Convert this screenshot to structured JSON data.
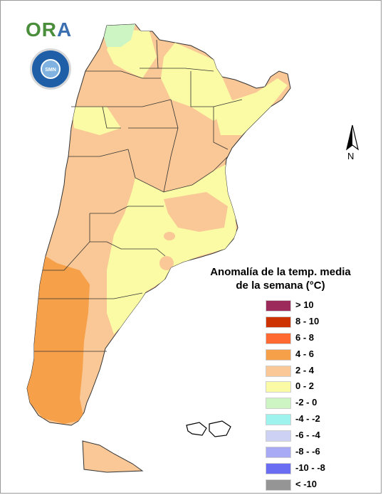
{
  "branding": {
    "logo_main": "OR",
    "logo_accent": "A",
    "seal_name": "smn-seal-icon",
    "seal_text": "SMN"
  },
  "compass": {
    "label": "N",
    "icon": "north-arrow-icon"
  },
  "legend": {
    "title_line1": "Anomalía de la temp. media",
    "title_line2": "de la semana (°C)",
    "items": [
      {
        "label": "> 10",
        "color": "#9c2b5c"
      },
      {
        "label": "8 - 10",
        "color": "#cc3300"
      },
      {
        "label": "6 - 8",
        "color": "#ff6a33"
      },
      {
        "label": "4 - 6",
        "color": "#f7a04a"
      },
      {
        "label": "2 - 4",
        "color": "#f9c896"
      },
      {
        "label": "0 - 2",
        "color": "#fbfba6"
      },
      {
        "label": "-2 - 0",
        "color": "#cdf5c4"
      },
      {
        "label": "-4 - -2",
        "color": "#9ef3ee"
      },
      {
        "label": "-6 - -4",
        "color": "#cdd2f5"
      },
      {
        "label": "-8 - -6",
        "color": "#a8aaf5"
      },
      {
        "label": "-10 - -8",
        "color": "#6a6cf2"
      },
      {
        "label": "< -10",
        "color": "#959595"
      }
    ]
  },
  "map_colors": {
    "band_2_4": "#f9c896",
    "band_4_6": "#f7a04a",
    "band_0_2": "#fbfba6",
    "band_minus2_0": "#cdf5c4",
    "border": "#333333"
  }
}
